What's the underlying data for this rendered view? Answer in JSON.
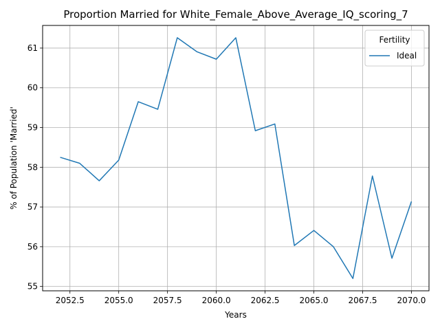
{
  "chart_data": {
    "type": "line",
    "title": "Proportion Married for White_Female_Above_Average_IQ_scoring_7",
    "xlabel": "Years",
    "ylabel": "% of Population 'Married'",
    "xlim": [
      2051.1,
      2070.9
    ],
    "ylim": [
      54.89,
      61.57
    ],
    "x_ticks": [
      2052.5,
      2055.0,
      2057.5,
      2060.0,
      2062.5,
      2065.0,
      2067.5,
      2070.0
    ],
    "x_tick_labels": [
      "2052.5",
      "2055.0",
      "2057.5",
      "2060.0",
      "2062.5",
      "2065.0",
      "2067.5",
      "2070.0"
    ],
    "y_ticks": [
      55,
      56,
      57,
      58,
      59,
      60,
      61
    ],
    "y_tick_labels": [
      "55",
      "56",
      "57",
      "58",
      "59",
      "60",
      "61"
    ],
    "grid": true,
    "legend": {
      "title": "Fertility",
      "placement": "top-right"
    },
    "series": [
      {
        "name": "Ideal",
        "color": "#1f77b4",
        "x": [
          2052,
          2053,
          2054,
          2055,
          2056,
          2057,
          2058,
          2059,
          2060,
          2061,
          2062,
          2063,
          2064,
          2065,
          2066,
          2067,
          2068,
          2069,
          2070
        ],
        "values": [
          58.25,
          58.1,
          57.66,
          58.18,
          59.65,
          59.46,
          61.26,
          60.91,
          60.72,
          61.26,
          58.92,
          59.09,
          56.03,
          56.41,
          56.0,
          55.2,
          57.78,
          55.71,
          57.14
        ]
      }
    ]
  }
}
